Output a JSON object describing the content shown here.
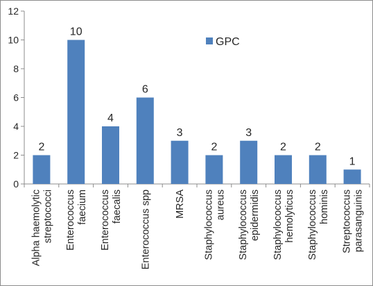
{
  "chart_data": {
    "type": "bar",
    "categories": [
      [
        "Alpha haemolytic",
        "streptococci"
      ],
      [
        "Enterococcus",
        "faecium"
      ],
      [
        "Enterococcus",
        "faecalis"
      ],
      [
        "Enterococcus spp"
      ],
      [
        "MRSA"
      ],
      [
        "Staphylococcus",
        "aureus"
      ],
      [
        "Staphylococcus",
        "epidermidis"
      ],
      [
        "Staphylococcus",
        "hemolyticus"
      ],
      [
        "Staphylococcus",
        "hominis"
      ],
      [
        "Streptococcus",
        "parasanguinis"
      ]
    ],
    "series": [
      {
        "name": "GPC",
        "values": [
          2,
          10,
          4,
          6,
          3,
          2,
          3,
          2,
          2,
          1
        ],
        "color": "#4f81bd"
      }
    ],
    "ylim": [
      0,
      12
    ],
    "yticks": [
      0,
      2,
      4,
      6,
      8,
      10,
      12
    ],
    "grid": false,
    "legend_position": "top-right",
    "data_labels": true
  }
}
